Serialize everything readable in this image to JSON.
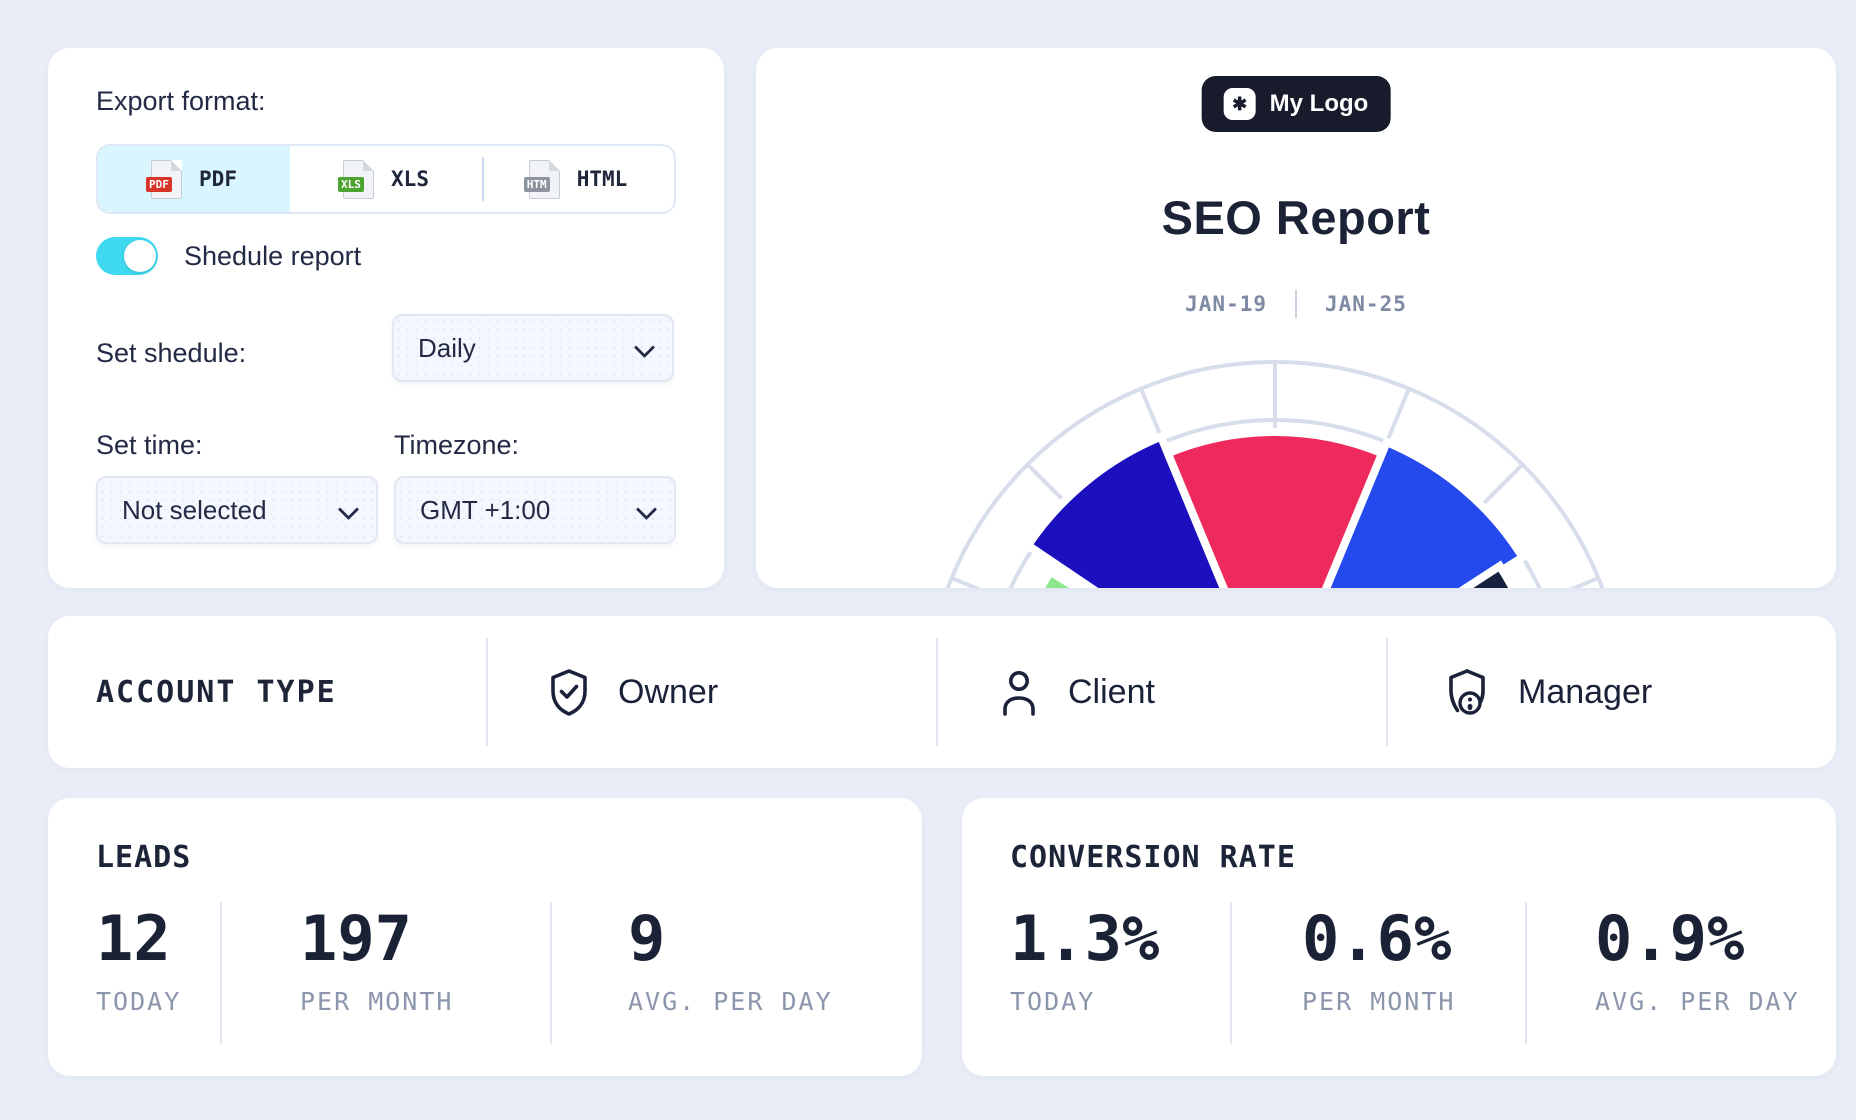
{
  "export_card": {
    "title": "Export format:",
    "formats": [
      {
        "label": "PDF",
        "badge": "PDF",
        "badge_color": "#d8342a",
        "selected": true
      },
      {
        "label": "XLS",
        "badge": "XLS",
        "badge_color": "#4ca32f",
        "selected": false
      },
      {
        "label": "HTML",
        "badge": "HTM",
        "badge_color": "#8e949f",
        "selected": false
      }
    ],
    "toggle_label": "Shedule report",
    "toggle_on": true,
    "schedule_label": "Set shedule:",
    "schedule_value": "Daily",
    "time_label": "Set time:",
    "time_value": "Not selected",
    "timezone_label": "Timezone:",
    "timezone_value": "GMT +1:00"
  },
  "report_card": {
    "logo_icon": "✱",
    "logo_text": "My Logo",
    "title": "SEO Report",
    "date_from": "JAN-19",
    "date_to": "JAN-25"
  },
  "chart_data": {
    "type": "gauge",
    "title": "SEO score gauge (semicircular, unlabeled values, clipped at card bottom)",
    "grid": {
      "ring_radii": [
        350,
        292
      ],
      "spoke_step_deg": 22.5,
      "spoke_inner_radius": 175,
      "color": "#d7ddeb"
    },
    "segments": [
      {
        "name": "green",
        "start_deg": 180,
        "end_deg": 148,
        "radius": 265,
        "color": "#8ce88d"
      },
      {
        "name": "dark-blue",
        "start_deg": 146,
        "end_deg": 112.5,
        "radius": 298,
        "color": "#1b0fbe"
      },
      {
        "name": "red",
        "start_deg": 112.5,
        "end_deg": 67.5,
        "radius": 280,
        "color": "#ee2a5c"
      },
      {
        "name": "bright-blue",
        "start_deg": 67.5,
        "end_deg": 32,
        "radius": 292,
        "color": "#2449ec"
      },
      {
        "name": "navy",
        "start_deg": 33,
        "end_deg": 14,
        "radius": 268,
        "color": "#16203f"
      }
    ]
  },
  "account_bar": {
    "title": "ACCOUNT TYPE",
    "options": [
      {
        "label": "Owner",
        "icon": "shield-check-icon"
      },
      {
        "label": "Client",
        "icon": "person-icon"
      },
      {
        "label": "Manager",
        "icon": "shield-person-icon"
      }
    ]
  },
  "stats_cards": [
    {
      "title": "LEADS",
      "stats": [
        {
          "value": "12",
          "label": "TODAY"
        },
        {
          "value": "197",
          "label": "PER MONTH"
        },
        {
          "value": "9",
          "label": "AVG. PER DAY"
        }
      ]
    },
    {
      "title": "CONVERSION RATE",
      "stats": [
        {
          "value": "1.3%",
          "label": "TODAY"
        },
        {
          "value": "0.6%",
          "label": "PER MONTH"
        },
        {
          "value": "0.9%",
          "label": "AVG. PER DAY"
        }
      ]
    }
  ],
  "colors": {
    "page_bg": "#e9edf7",
    "card_bg": "#ffffff",
    "text_dark": "#1e2539",
    "text_gray": "#8b95ab",
    "accent_cyan": "#3fd9ef",
    "format_selected_bg": "#d9f5fd",
    "logo_bg": "#171b2c"
  }
}
